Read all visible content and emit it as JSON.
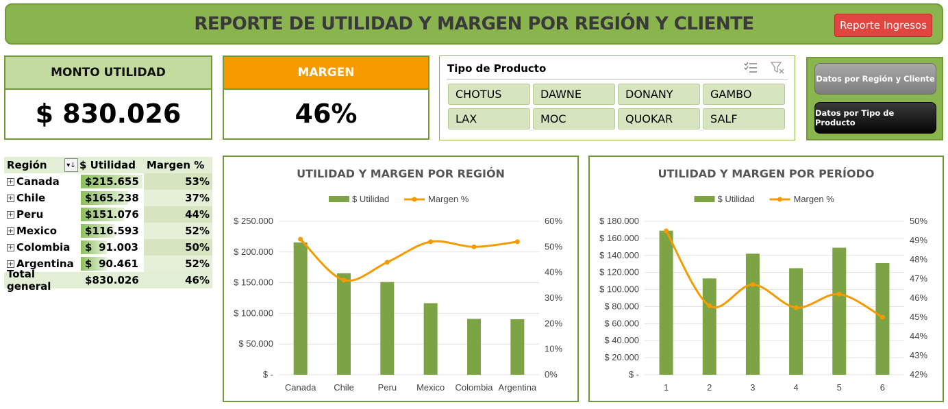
{
  "header": {
    "title": "REPORTE DE UTILIDAD Y MARGEN POR REGIÓN Y CLIENTE",
    "report_button": "Reporte Ingresos"
  },
  "kpis": {
    "utilidad": {
      "label": "MONTO UTILIDAD",
      "value": "$ 830.026"
    },
    "margen": {
      "label": "MARGEN",
      "value": "46%"
    }
  },
  "slicer": {
    "title": "Tipo de Producto",
    "icons": [
      "multi-select-icon",
      "clear-filter-icon"
    ],
    "items": [
      "CHOTUS",
      "DAWNE",
      "DONANY",
      "GAMBO",
      "LAX",
      "MOC",
      "QUOKAR",
      "SALF"
    ]
  },
  "nav": {
    "region_cliente": "Datos por Región y Cliente",
    "tipo_producto": "Datos por Tipo de Producto"
  },
  "pivot": {
    "headers": {
      "region": "Región",
      "utilidad": "$ Utilidad",
      "margen": "Margen %"
    },
    "rows": [
      {
        "region": "Canada",
        "currency": "$",
        "amount": "215.655",
        "margen": "53%",
        "value": 215655
      },
      {
        "region": "Chile",
        "currency": "$",
        "amount": "165.238",
        "margen": "37%",
        "value": 165238
      },
      {
        "region": "Peru",
        "currency": "$",
        "amount": "151.076",
        "margen": "44%",
        "value": 151076
      },
      {
        "region": "Mexico",
        "currency": "$",
        "amount": "116.593",
        "margen": "52%",
        "value": 116593
      },
      {
        "region": "Colombia",
        "currency": "$",
        "amount": "91.003",
        "margen": "50%",
        "value": 91003
      },
      {
        "region": "Argentina",
        "currency": "$",
        "amount": "90.461",
        "margen": "52%",
        "value": 90461
      }
    ],
    "total": {
      "label": "Total general",
      "currency": "$",
      "amount": "830.026",
      "margen": "46%"
    }
  },
  "colors": {
    "bar": "#7ca444",
    "line": "#f59b00",
    "accent": "#8ab44e",
    "border": "#6f9a37"
  },
  "chart_data": [
    {
      "type": "bar",
      "title": "UTILIDAD Y MARGEN POR REGIÓN",
      "categories": [
        "Canada",
        "Chile",
        "Peru",
        "Mexico",
        "Colombia",
        "Argentina"
      ],
      "series": [
        {
          "name": "$ Utilidad",
          "type": "bar",
          "axis": "left",
          "values": [
            215655,
            165238,
            151076,
            116593,
            91003,
            90461
          ]
        },
        {
          "name": "Margen %",
          "type": "line",
          "axis": "right",
          "values": [
            53,
            37,
            44,
            52,
            50,
            52
          ]
        }
      ],
      "y_left": {
        "min": 0,
        "max": 250000,
        "ticks": [
          "$ -",
          "$ 50.000",
          "$ 100.000",
          "$ 150.000",
          "$ 200.000",
          "$ 250.000"
        ]
      },
      "y_right": {
        "min": 0,
        "max": 60,
        "ticks": [
          "0%",
          "10%",
          "20%",
          "30%",
          "40%",
          "50%",
          "60%"
        ]
      },
      "legend": "top",
      "grid": true
    },
    {
      "type": "bar",
      "title": "UTILIDAD Y MARGEN POR PERÍODO",
      "categories": [
        "1",
        "2",
        "3",
        "4",
        "5",
        "6"
      ],
      "series": [
        {
          "name": "$ Utilidad",
          "type": "bar",
          "axis": "left",
          "values": [
            169000,
            113000,
            142000,
            125000,
            149000,
            131000
          ]
        },
        {
          "name": "Margen %",
          "type": "line",
          "axis": "right",
          "values": [
            49.5,
            45.6,
            46.7,
            45.5,
            46.2,
            45.0
          ]
        }
      ],
      "y_left": {
        "min": 0,
        "max": 180000,
        "ticks": [
          "$ -",
          "$ 20.000",
          "$ 40.000",
          "$ 60.000",
          "$ 80.000",
          "$ 100.000",
          "$ 120.000",
          "$ 140.000",
          "$ 160.000",
          "$ 180.000"
        ]
      },
      "y_right": {
        "min": 42,
        "max": 50,
        "ticks": [
          "42%",
          "43%",
          "44%",
          "45%",
          "46%",
          "47%",
          "48%",
          "49%",
          "50%"
        ]
      },
      "legend": "top",
      "grid": true
    }
  ]
}
